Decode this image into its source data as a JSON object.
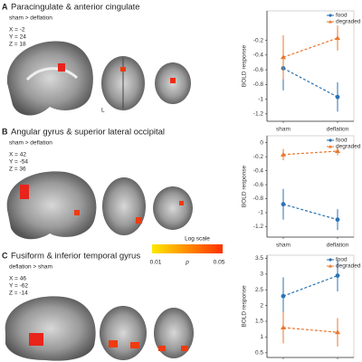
{
  "panels": [
    {
      "letter": "A",
      "title": "Paracingulate & anterior cingulate",
      "contrast": "sham > deflation",
      "coords": [
        "X = -2",
        "Y = 24",
        "Z = 18"
      ],
      "side_label": "L"
    },
    {
      "letter": "B",
      "title": "Angular gyrus & superior lateral occipital",
      "contrast": "sham > deflation",
      "coords": [
        "X = 42",
        "Y = -54",
        "Z = 36"
      ]
    },
    {
      "letter": "C",
      "title": "Fusiform & inferior temporal gyrus",
      "contrast": "deflation > sham",
      "coords": [
        "X = 46",
        "Y = -62",
        "Z = -14"
      ]
    }
  ],
  "colorbar": {
    "title": "Log scale",
    "labels": [
      "0.01",
      "p",
      "0.05"
    ],
    "colors": [
      "#ffe800",
      "#ff3000"
    ]
  },
  "chart_data": [
    {
      "type": "line",
      "y_label": "BOLD response",
      "categories": [
        "sham",
        "deflation"
      ],
      "ylim": [
        -1.3,
        0.2
      ],
      "yticks": [
        -1.2,
        -1,
        -0.8,
        -0.6,
        -0.4,
        -0.2
      ],
      "legend": "upper right",
      "series": [
        {
          "name": "food",
          "color": "#2a72b5",
          "marker": "circle",
          "values": [
            -0.58,
            -0.97
          ],
          "errors": [
            0.3,
            0.2
          ]
        },
        {
          "name": "degraded",
          "color": "#e8772e",
          "marker": "triangle",
          "values": [
            -0.43,
            -0.17
          ],
          "errors": [
            0.3,
            0.17
          ]
        }
      ]
    },
    {
      "type": "line",
      "y_label": "BOLD response",
      "categories": [
        "sham",
        "deflation"
      ],
      "ylim": [
        -1.35,
        0.1
      ],
      "yticks": [
        -1.2,
        -1,
        -0.8,
        -0.6,
        -0.4,
        -0.2,
        0
      ],
      "legend": "upper right",
      "series": [
        {
          "name": "food",
          "color": "#2a72b5",
          "marker": "circle",
          "values": [
            -0.88,
            -1.1
          ],
          "errors": [
            0.22,
            0.15
          ]
        },
        {
          "name": "degraded",
          "color": "#e8772e",
          "marker": "triangle",
          "values": [
            -0.17,
            -0.12
          ],
          "errors": [
            0.08,
            0.06
          ]
        }
      ]
    },
    {
      "type": "line",
      "y_label": "BOLD response",
      "categories": [
        "sham",
        "deflation"
      ],
      "ylim": [
        0.35,
        3.6
      ],
      "yticks": [
        0.5,
        1,
        1.5,
        2,
        2.5,
        3,
        3.5
      ],
      "legend": "upper right",
      "series": [
        {
          "name": "food",
          "color": "#2a72b5",
          "marker": "circle",
          "values": [
            2.3,
            2.95
          ],
          "errors": [
            0.6,
            0.5
          ]
        },
        {
          "name": "degraded",
          "color": "#e8772e",
          "marker": "triangle",
          "values": [
            1.3,
            1.15
          ],
          "errors": [
            0.5,
            0.45
          ]
        }
      ]
    }
  ]
}
